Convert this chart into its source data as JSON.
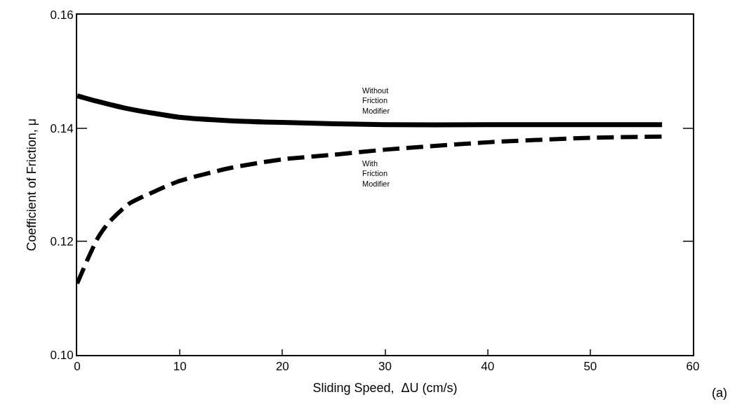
{
  "chart_data": {
    "type": "line",
    "xlabel": "Sliding Speed,  ΔU (cm/s)",
    "ylabel": "Coefficient of Friction, μ",
    "xlim": [
      0,
      60
    ],
    "xticks": [
      0,
      10,
      20,
      30,
      40,
      50,
      60
    ],
    "ylim": [
      0.1,
      0.16
    ],
    "yticks": [
      {
        "value": 0.1,
        "label": "0.10"
      },
      0.12,
      0.14,
      0.16
    ],
    "legend": false,
    "marker": "none",
    "series": [
      {
        "name": "Without\nFriction\nModifier",
        "color": "#000000",
        "line_style": "solid",
        "x": [
          0,
          2,
          5,
          10,
          15,
          20,
          30,
          40,
          50,
          57
        ],
        "values": [
          0.1457,
          0.1447,
          0.1434,
          0.1419,
          0.1413,
          0.141,
          0.1406,
          0.1406,
          0.1406,
          0.1406
        ]
      },
      {
        "name": "With\nFriction\nModifier",
        "color": "#000000",
        "line_style": "dashed",
        "x": [
          0,
          1,
          2,
          3,
          5,
          7.5,
          10,
          15,
          20,
          25,
          30,
          40,
          50,
          57
        ],
        "values": [
          0.1126,
          0.1168,
          0.1206,
          0.1232,
          0.1266,
          0.1288,
          0.1307,
          0.133,
          0.1345,
          0.1353,
          0.1362,
          0.1375,
          0.1383,
          0.1385
        ]
      }
    ],
    "annotations": [
      "(a)"
    ]
  }
}
